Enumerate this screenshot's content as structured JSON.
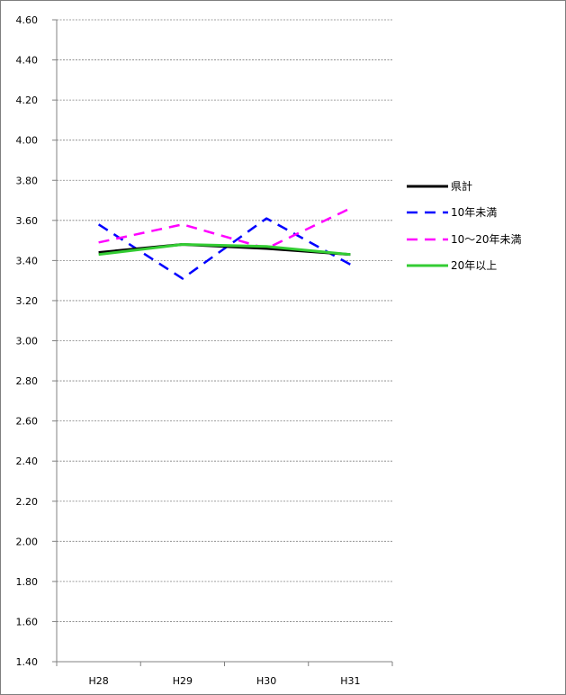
{
  "chart_data": {
    "type": "line",
    "title": "",
    "xlabel": "",
    "ylabel": "",
    "categories": [
      "H28",
      "H29",
      "H30",
      "H31"
    ],
    "ylim": [
      1.4,
      4.6
    ],
    "yticks": [
      "4.60",
      "4.40",
      "4.20",
      "4.00",
      "3.80",
      "3.60",
      "3.40",
      "3.20",
      "3.00",
      "2.80",
      "2.60",
      "2.40",
      "2.20",
      "2.00",
      "1.80",
      "1.60",
      "1.40"
    ],
    "grid": true,
    "legend_position": "right",
    "series": [
      {
        "name": "県計",
        "values": [
          3.44,
          3.48,
          3.46,
          3.43
        ],
        "color": "#000000",
        "dash": "solid"
      },
      {
        "name": "10年未満",
        "values": [
          3.58,
          3.31,
          3.61,
          3.38
        ],
        "color": "#0000ff",
        "dash": "dashed"
      },
      {
        "name": "10〜20年未満",
        "values": [
          3.49,
          3.58,
          3.46,
          3.66
        ],
        "color": "#ff00ff",
        "dash": "dashed"
      },
      {
        "name": "20年以上",
        "values": [
          3.43,
          3.48,
          3.47,
          3.43
        ],
        "color": "#33cc33",
        "dash": "solid"
      }
    ]
  }
}
